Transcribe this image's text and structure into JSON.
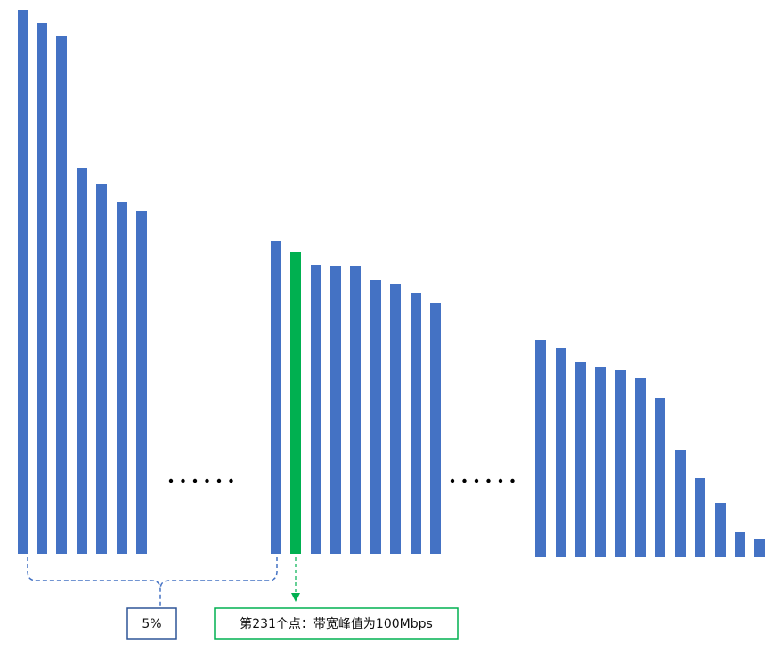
{
  "labels": {
    "percent": "5%",
    "point": "第231个点：带宽峰值为100Mbps"
  }
}
